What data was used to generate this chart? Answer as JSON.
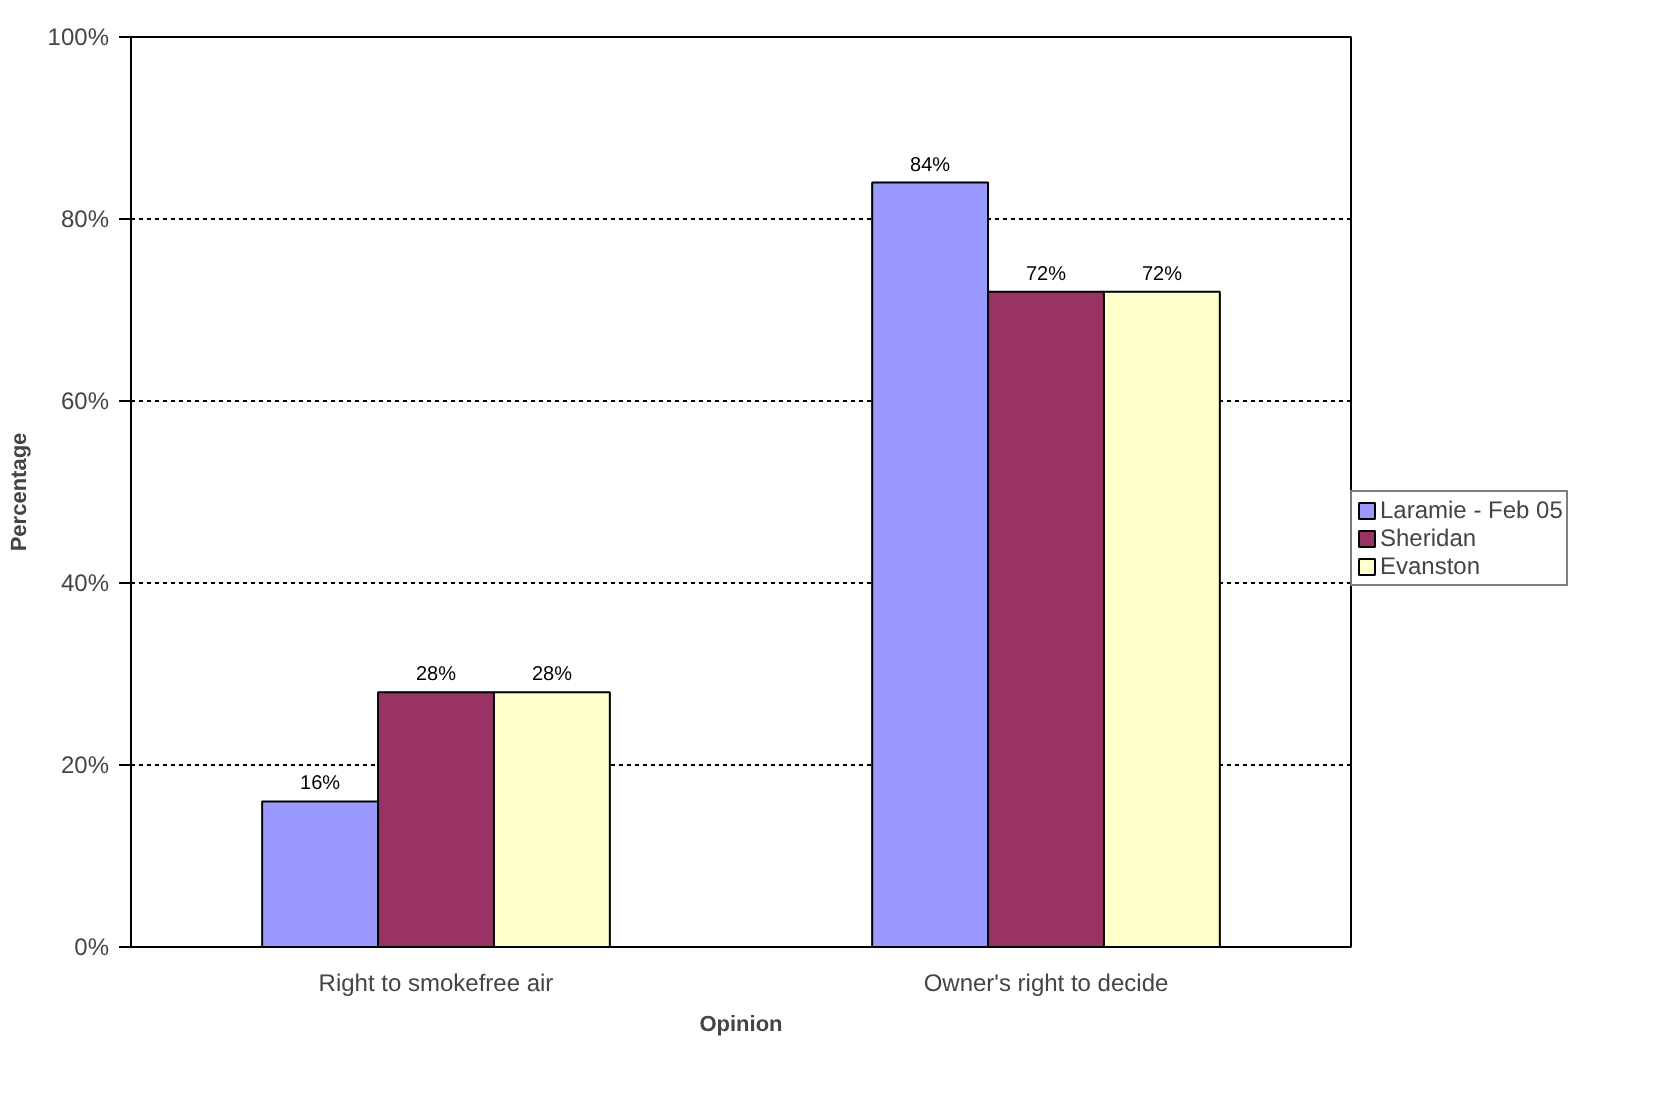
{
  "chart_data": {
    "type": "bar",
    "xlabel": "Opinion",
    "ylabel": "Percentage",
    "categories": [
      "Right to smokefree air",
      "Owner's right to decide"
    ],
    "series": [
      {
        "name": "Laramie - Feb 05",
        "color": "#9999ff",
        "values": [
          16,
          84
        ],
        "value_labels": [
          "16%",
          "84%"
        ]
      },
      {
        "name": "Sheridan",
        "color": "#993366",
        "values": [
          28,
          72
        ],
        "value_labels": [
          "28%",
          "72%"
        ]
      },
      {
        "name": "Evanston",
        "color": "#ffffcc",
        "values": [
          28,
          72
        ],
        "value_labels": [
          "28%",
          "72%"
        ]
      }
    ],
    "ylim": [
      0,
      100
    ],
    "yticks": [
      {
        "value": 0,
        "label": "0%"
      },
      {
        "value": 20,
        "label": "20%"
      },
      {
        "value": 40,
        "label": "40%"
      },
      {
        "value": 60,
        "label": "60%"
      },
      {
        "value": 80,
        "label": "80%"
      },
      {
        "value": 100,
        "label": "100%"
      }
    ],
    "grid": "y",
    "legend": "right"
  }
}
